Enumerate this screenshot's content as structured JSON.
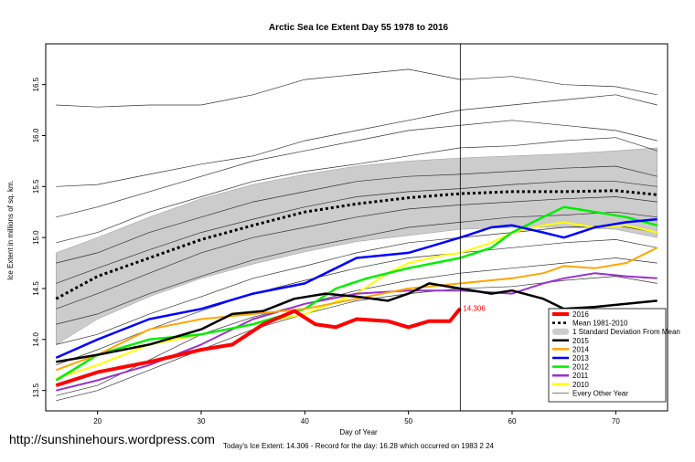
{
  "chart_data": {
    "type": "line",
    "title": "Arctic Sea Ice Extent Day 55 1978 to 2016",
    "xlabel": "Day of Year",
    "ylabel": "Ice Extent in millions of sq. km.",
    "xlim": [
      15,
      75
    ],
    "ylim": [
      13.3,
      16.9
    ],
    "x_ticks": [
      20,
      30,
      40,
      50,
      60,
      70
    ],
    "y_ticks": [
      13.5,
      14.0,
      14.5,
      15.0,
      15.5,
      16.0,
      16.5
    ],
    "y_tick_labels": [
      "13.5",
      "14.0",
      "14.5",
      "15.0",
      "15.5",
      "16.0",
      "16.5"
    ],
    "grid": false,
    "legend_position": "bottom-right",
    "vertical_line_day": 55,
    "annotation": {
      "x": 55,
      "y": 14.306,
      "text": "14.306"
    },
    "mean": {
      "name": "Mean 1981-2010",
      "color": "#000000",
      "points": [
        [
          16,
          14.4
        ],
        [
          20,
          14.62
        ],
        [
          25,
          14.8
        ],
        [
          30,
          14.98
        ],
        [
          35,
          15.12
        ],
        [
          40,
          15.25
        ],
        [
          45,
          15.33
        ],
        [
          50,
          15.39
        ],
        [
          55,
          15.43
        ],
        [
          60,
          15.45
        ],
        [
          65,
          15.45
        ],
        [
          70,
          15.46
        ],
        [
          74,
          15.42
        ]
      ]
    },
    "std_band": {
      "name": "1 Standard Deviation From Mean",
      "color": "#cccccc",
      "upper": [
        [
          16,
          14.85
        ],
        [
          20,
          15.0
        ],
        [
          25,
          15.2
        ],
        [
          30,
          15.38
        ],
        [
          35,
          15.52
        ],
        [
          40,
          15.62
        ],
        [
          45,
          15.7
        ],
        [
          50,
          15.75
        ],
        [
          55,
          15.78
        ],
        [
          60,
          15.8
        ],
        [
          65,
          15.82
        ],
        [
          70,
          15.85
        ],
        [
          74,
          15.88
        ]
      ],
      "lower": [
        [
          16,
          13.95
        ],
        [
          20,
          14.2
        ],
        [
          25,
          14.42
        ],
        [
          30,
          14.6
        ],
        [
          35,
          14.74
        ],
        [
          40,
          14.86
        ],
        [
          45,
          14.96
        ],
        [
          50,
          15.02
        ],
        [
          55,
          15.08
        ],
        [
          60,
          15.1
        ],
        [
          65,
          15.1
        ],
        [
          70,
          15.08
        ],
        [
          74,
          15.0
        ]
      ]
    },
    "series": [
      {
        "name": "2016",
        "color": "#ff0000",
        "width": 4,
        "points": [
          [
            16,
            13.55
          ],
          [
            20,
            13.68
          ],
          [
            25,
            13.78
          ],
          [
            30,
            13.9
          ],
          [
            33,
            13.95
          ],
          [
            36,
            14.15
          ],
          [
            39,
            14.28
          ],
          [
            41,
            14.15
          ],
          [
            43,
            14.12
          ],
          [
            45,
            14.2
          ],
          [
            48,
            14.18
          ],
          [
            50,
            14.12
          ],
          [
            52,
            14.18
          ],
          [
            54,
            14.18
          ],
          [
            55,
            14.306
          ]
        ]
      },
      {
        "name": "2015",
        "color": "#000000",
        "width": 2.5,
        "points": [
          [
            16,
            13.78
          ],
          [
            20,
            13.85
          ],
          [
            25,
            13.95
          ],
          [
            30,
            14.1
          ],
          [
            33,
            14.25
          ],
          [
            36,
            14.28
          ],
          [
            39,
            14.4
          ],
          [
            42,
            14.45
          ],
          [
            45,
            14.42
          ],
          [
            48,
            14.38
          ],
          [
            50,
            14.45
          ],
          [
            52,
            14.55
          ],
          [
            55,
            14.5
          ],
          [
            58,
            14.45
          ],
          [
            60,
            14.48
          ],
          [
            63,
            14.4
          ],
          [
            65,
            14.3
          ],
          [
            68,
            14.32
          ],
          [
            71,
            14.35
          ],
          [
            74,
            14.38
          ]
        ]
      },
      {
        "name": "2014",
        "color": "#ffa500",
        "width": 2,
        "points": [
          [
            16,
            13.7
          ],
          [
            20,
            13.85
          ],
          [
            25,
            14.1
          ],
          [
            30,
            14.2
          ],
          [
            35,
            14.25
          ],
          [
            40,
            14.3
          ],
          [
            45,
            14.4
          ],
          [
            50,
            14.5
          ],
          [
            55,
            14.55
          ],
          [
            60,
            14.6
          ],
          [
            63,
            14.65
          ],
          [
            65,
            14.72
          ],
          [
            68,
            14.7
          ],
          [
            71,
            14.75
          ],
          [
            74,
            14.9
          ]
        ]
      },
      {
        "name": "2013",
        "color": "#0000ff",
        "width": 2.5,
        "points": [
          [
            16,
            13.82
          ],
          [
            20,
            14.0
          ],
          [
            25,
            14.2
          ],
          [
            30,
            14.3
          ],
          [
            35,
            14.45
          ],
          [
            40,
            14.55
          ],
          [
            45,
            14.8
          ],
          [
            50,
            14.85
          ],
          [
            55,
            15.0
          ],
          [
            58,
            15.1
          ],
          [
            60,
            15.12
          ],
          [
            63,
            15.05
          ],
          [
            65,
            15.0
          ],
          [
            68,
            15.1
          ],
          [
            71,
            15.15
          ],
          [
            74,
            15.18
          ]
        ]
      },
      {
        "name": "2012",
        "color": "#00ee00",
        "width": 2.5,
        "points": [
          [
            16,
            13.6
          ],
          [
            20,
            13.85
          ],
          [
            25,
            14.0
          ],
          [
            30,
            14.05
          ],
          [
            35,
            14.15
          ],
          [
            40,
            14.3
          ],
          [
            43,
            14.5
          ],
          [
            46,
            14.6
          ],
          [
            50,
            14.7
          ],
          [
            55,
            14.8
          ],
          [
            58,
            14.9
          ],
          [
            60,
            15.05
          ],
          [
            63,
            15.2
          ],
          [
            65,
            15.3
          ],
          [
            68,
            15.25
          ],
          [
            71,
            15.2
          ],
          [
            74,
            15.12
          ]
        ]
      },
      {
        "name": "2011",
        "color": "#9932cc",
        "width": 2,
        "points": [
          [
            16,
            13.5
          ],
          [
            20,
            13.6
          ],
          [
            25,
            13.75
          ],
          [
            30,
            13.95
          ],
          [
            35,
            14.2
          ],
          [
            40,
            14.35
          ],
          [
            45,
            14.45
          ],
          [
            50,
            14.48
          ],
          [
            55,
            14.48
          ],
          [
            60,
            14.45
          ],
          [
            63,
            14.55
          ],
          [
            65,
            14.6
          ],
          [
            68,
            14.65
          ],
          [
            71,
            14.62
          ],
          [
            74,
            14.6
          ]
        ]
      },
      {
        "name": "2010",
        "color": "#ffff00",
        "width": 2,
        "points": [
          [
            16,
            13.62
          ],
          [
            20,
            13.75
          ],
          [
            25,
            13.95
          ],
          [
            30,
            14.05
          ],
          [
            35,
            14.15
          ],
          [
            40,
            14.25
          ],
          [
            45,
            14.45
          ],
          [
            48,
            14.65
          ],
          [
            50,
            14.75
          ],
          [
            53,
            14.82
          ],
          [
            55,
            14.85
          ],
          [
            58,
            14.95
          ],
          [
            60,
            15.05
          ],
          [
            63,
            15.12
          ],
          [
            65,
            15.15
          ],
          [
            68,
            15.1
          ],
          [
            71,
            15.12
          ],
          [
            74,
            15.05
          ]
        ]
      }
    ],
    "background_series_label": "Every Other Year",
    "background_series": [
      [
        [
          16,
          15.5
        ],
        [
          20,
          15.52
        ],
        [
          25,
          15.62
        ],
        [
          30,
          15.72
        ],
        [
          35,
          15.8
        ],
        [
          40,
          15.95
        ],
        [
          45,
          16.05
        ],
        [
          50,
          16.15
        ],
        [
          55,
          16.25
        ],
        [
          60,
          16.3
        ],
        [
          65,
          16.35
        ],
        [
          70,
          16.4
        ],
        [
          74,
          16.3
        ]
      ],
      [
        [
          16,
          15.2
        ],
        [
          20,
          15.3
        ],
        [
          25,
          15.45
        ],
        [
          30,
          15.6
        ],
        [
          35,
          15.75
        ],
        [
          40,
          15.85
        ],
        [
          45,
          15.95
        ],
        [
          50,
          16.05
        ],
        [
          55,
          16.1
        ],
        [
          60,
          16.15
        ],
        [
          65,
          16.1
        ],
        [
          70,
          16.05
        ],
        [
          74,
          15.95
        ]
      ],
      [
        [
          16,
          14.95
        ],
        [
          20,
          15.05
        ],
        [
          25,
          15.25
        ],
        [
          30,
          15.4
        ],
        [
          35,
          15.55
        ],
        [
          40,
          15.65
        ],
        [
          45,
          15.72
        ],
        [
          50,
          15.8
        ],
        [
          55,
          15.88
        ],
        [
          60,
          15.9
        ],
        [
          65,
          15.95
        ],
        [
          70,
          15.98
        ],
        [
          74,
          15.85
        ]
      ],
      [
        [
          16,
          14.75
        ],
        [
          20,
          14.85
        ],
        [
          25,
          15.05
        ],
        [
          30,
          15.2
        ],
        [
          35,
          15.35
        ],
        [
          40,
          15.45
        ],
        [
          45,
          15.55
        ],
        [
          50,
          15.6
        ],
        [
          55,
          15.62
        ],
        [
          60,
          15.65
        ],
        [
          65,
          15.68
        ],
        [
          70,
          15.7
        ],
        [
          74,
          15.6
        ]
      ],
      [
        [
          16,
          14.55
        ],
        [
          20,
          14.7
        ],
        [
          25,
          14.88
        ],
        [
          30,
          15.05
        ],
        [
          35,
          15.18
        ],
        [
          40,
          15.3
        ],
        [
          45,
          15.4
        ],
        [
          50,
          15.45
        ],
        [
          55,
          15.48
        ],
        [
          60,
          15.52
        ],
        [
          65,
          15.55
        ],
        [
          70,
          15.55
        ],
        [
          74,
          15.5
        ]
      ],
      [
        [
          16,
          14.3
        ],
        [
          20,
          14.45
        ],
        [
          25,
          14.65
        ],
        [
          30,
          14.85
        ],
        [
          35,
          15.0
        ],
        [
          40,
          15.1
        ],
        [
          45,
          15.2
        ],
        [
          50,
          15.28
        ],
        [
          55,
          15.32
        ],
        [
          60,
          15.35
        ],
        [
          65,
          15.38
        ],
        [
          70,
          15.4
        ],
        [
          74,
          15.35
        ]
      ],
      [
        [
          16,
          14.15
        ],
        [
          20,
          14.25
        ],
        [
          25,
          14.45
        ],
        [
          30,
          14.62
        ],
        [
          35,
          14.78
        ],
        [
          40,
          14.9
        ],
        [
          45,
          15.0
        ],
        [
          50,
          15.1
        ],
        [
          55,
          15.15
        ],
        [
          60,
          15.2
        ],
        [
          65,
          15.22
        ],
        [
          70,
          15.25
        ],
        [
          74,
          15.2
        ]
      ],
      [
        [
          16,
          13.95
        ],
        [
          20,
          14.05
        ],
        [
          25,
          14.25
        ],
        [
          30,
          14.42
        ],
        [
          35,
          14.6
        ],
        [
          40,
          14.72
        ],
        [
          45,
          14.85
        ],
        [
          50,
          14.95
        ],
        [
          55,
          15.0
        ],
        [
          60,
          15.05
        ],
        [
          65,
          15.1
        ],
        [
          70,
          15.12
        ],
        [
          74,
          15.05
        ]
      ],
      [
        [
          16,
          13.75
        ],
        [
          20,
          13.9
        ],
        [
          25,
          14.1
        ],
        [
          30,
          14.28
        ],
        [
          35,
          14.45
        ],
        [
          40,
          14.58
        ],
        [
          45,
          14.7
        ],
        [
          50,
          14.8
        ],
        [
          55,
          14.85
        ],
        [
          60,
          14.9
        ],
        [
          65,
          14.95
        ],
        [
          70,
          14.98
        ],
        [
          74,
          14.9
        ]
      ],
      [
        [
          16,
          13.45
        ],
        [
          20,
          13.55
        ],
        [
          25,
          13.8
        ],
        [
          30,
          14.05
        ],
        [
          35,
          14.22
        ],
        [
          40,
          14.35
        ],
        [
          45,
          14.48
        ],
        [
          50,
          14.58
        ],
        [
          55,
          14.65
        ],
        [
          60,
          14.7
        ],
        [
          65,
          14.75
        ],
        [
          70,
          14.8
        ],
        [
          74,
          14.75
        ]
      ],
      [
        [
          16,
          13.4
        ],
        [
          20,
          13.5
        ],
        [
          25,
          13.7
        ],
        [
          30,
          13.9
        ],
        [
          35,
          14.1
        ],
        [
          40,
          14.25
        ],
        [
          45,
          14.38
        ],
        [
          50,
          14.45
        ],
        [
          55,
          14.5
        ],
        [
          60,
          14.52
        ],
        [
          65,
          14.58
        ],
        [
          70,
          14.62
        ],
        [
          74,
          14.55
        ]
      ],
      [
        [
          16,
          16.3
        ],
        [
          20,
          16.28
        ],
        [
          25,
          16.3
        ],
        [
          30,
          16.3
        ],
        [
          35,
          16.4
        ],
        [
          40,
          16.55
        ],
        [
          45,
          16.6
        ],
        [
          50,
          16.65
        ],
        [
          55,
          16.55
        ],
        [
          60,
          16.58
        ],
        [
          65,
          16.5
        ],
        [
          70,
          16.48
        ],
        [
          74,
          16.4
        ]
      ]
    ],
    "legend": [
      {
        "label": "2016",
        "color": "#ff0000",
        "style": "thick"
      },
      {
        "label": "Mean 1981-2010",
        "color": "#000000",
        "style": "dotted"
      },
      {
        "label": "1 Standard Deviation From Mean",
        "color": "#cccccc",
        "style": "band"
      },
      {
        "label": "2015",
        "color": "#000000",
        "style": "line"
      },
      {
        "label": "2014",
        "color": "#ffa500",
        "style": "line"
      },
      {
        "label": "2013",
        "color": "#0000ff",
        "style": "line"
      },
      {
        "label": "2012",
        "color": "#00ee00",
        "style": "line"
      },
      {
        "label": "2011",
        "color": "#9932cc",
        "style": "line"
      },
      {
        "label": "2010",
        "color": "#ffff00",
        "style": "line"
      },
      {
        "label": "Every Other Year",
        "color": "#555555",
        "style": "thin"
      }
    ]
  },
  "watermark": "http://sunshinehours.wordpress.com",
  "footer": "Today's Ice Extent: 14.306  - Record for the day: 16.28 which occurred on 1983 2 24"
}
